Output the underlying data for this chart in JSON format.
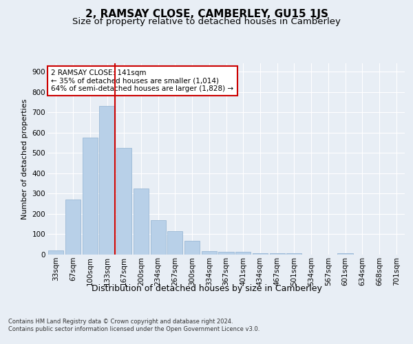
{
  "title": "2, RAMSAY CLOSE, CAMBERLEY, GU15 1JS",
  "subtitle": "Size of property relative to detached houses in Camberley",
  "xlabel": "Distribution of detached houses by size in Camberley",
  "ylabel": "Number of detached properties",
  "bar_labels": [
    "33sqm",
    "67sqm",
    "100sqm",
    "133sqm",
    "167sqm",
    "200sqm",
    "234sqm",
    "267sqm",
    "300sqm",
    "334sqm",
    "367sqm",
    "401sqm",
    "434sqm",
    "467sqm",
    "501sqm",
    "534sqm",
    "567sqm",
    "601sqm",
    "634sqm",
    "668sqm",
    "701sqm"
  ],
  "bar_values": [
    20,
    270,
    575,
    730,
    525,
    325,
    170,
    115,
    68,
    18,
    14,
    12,
    7,
    6,
    7,
    0,
    0,
    8,
    0,
    0,
    0
  ],
  "bar_color": "#b8d0e8",
  "bar_edgecolor": "#9ab8d5",
  "vline_color": "#cc0000",
  "annotation_text": "2 RAMSAY CLOSE: 141sqm\n← 35% of detached houses are smaller (1,014)\n64% of semi-detached houses are larger (1,828) →",
  "annotation_box_facecolor": "#ffffff",
  "annotation_box_edgecolor": "#cc0000",
  "ylim": [
    0,
    940
  ],
  "yticks": [
    0,
    100,
    200,
    300,
    400,
    500,
    600,
    700,
    800,
    900
  ],
  "bg_color": "#e8eef5",
  "plot_bg_color": "#e8eef5",
  "grid_color": "#ffffff",
  "title_fontsize": 11,
  "subtitle_fontsize": 9.5,
  "xlabel_fontsize": 9,
  "ylabel_fontsize": 8,
  "tick_fontsize": 7.5,
  "ann_fontsize": 7.5,
  "footer_line1": "Contains HM Land Registry data © Crown copyright and database right 2024.",
  "footer_line2": "Contains public sector information licensed under the Open Government Licence v3.0.",
  "footer_fontsize": 6
}
